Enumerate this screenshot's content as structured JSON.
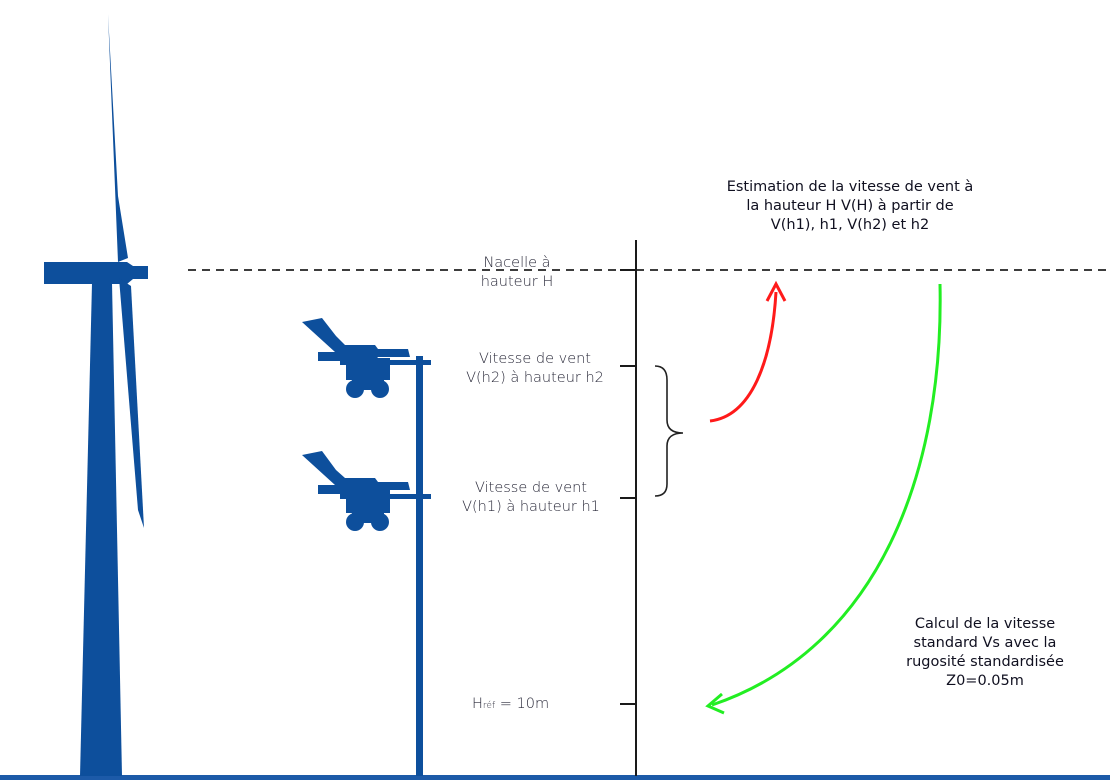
{
  "colors": {
    "turbine": "#0d4f9c",
    "axis": "#1a1a1a",
    "ground": "#1c5aa8",
    "arrow_up": "#ff1a1a",
    "arrow_down": "#22ee22"
  },
  "icons": [
    "wind-turbine-icon",
    "anemometer-icon",
    "weather-vane-icon"
  ],
  "labels": {
    "nacelle": [
      "Nacelle à",
      "hauteur H"
    ],
    "h2": [
      "Vitesse de vent",
      "V(h2)  à hauteur h2"
    ],
    "h1": [
      "Vitesse de vent",
      "V(h1)  à hauteur h1"
    ],
    "href": {
      "h": "H",
      "sub": "réf",
      "rest": " = 10m"
    },
    "estimation": [
      "Estimation de la vitesse de vent à",
      "la hauteur H V(H) à partir de",
      "V(h1), h1, V(h2) et h2"
    ],
    "calcul": [
      "Calcul de la vitesse",
      "standard Vs avec la",
      "rugosité standardisée",
      "Z0=0.05m"
    ]
  }
}
